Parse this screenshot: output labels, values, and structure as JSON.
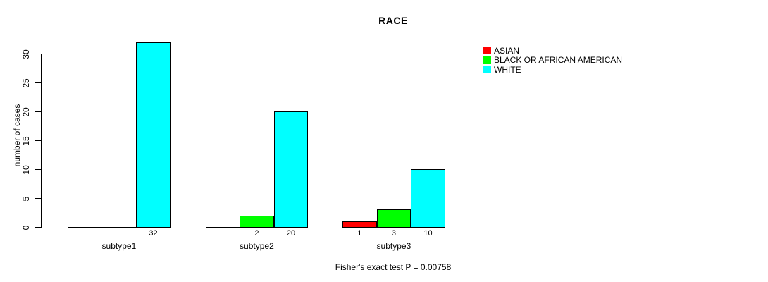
{
  "title": "RACE",
  "ylabel": "number of cases",
  "footer": "Fisher's exact test P = 0.00758",
  "legend": {
    "items": [
      {
        "label": "ASIAN",
        "color": "#FF0000"
      },
      {
        "label": "BLACK OR AFRICAN AMERICAN",
        "color": "#00FF00"
      },
      {
        "label": "WHITE",
        "color": "#00FFFF"
      }
    ]
  },
  "chart_data": {
    "type": "bar",
    "title": "RACE",
    "ylabel": "number of cases",
    "xlabel": "",
    "categories": [
      "subtype1",
      "subtype2",
      "subtype3"
    ],
    "series": [
      {
        "name": "ASIAN",
        "color": "#FF0000",
        "values": [
          0,
          0,
          1
        ]
      },
      {
        "name": "BLACK OR AFRICAN AMERICAN",
        "color": "#00FF00",
        "values": [
          0,
          2,
          3
        ]
      },
      {
        "name": "WHITE",
        "color": "#00FFFF",
        "values": [
          32,
          20,
          10
        ]
      }
    ],
    "yticks": [
      0,
      5,
      10,
      15,
      20,
      25,
      30
    ],
    "ylim": [
      0,
      32
    ],
    "grid": false,
    "legend_position": "top-right",
    "bar_value_labels": "shown under each non-zero bar",
    "annotation": "Fisher's exact test P = 0.00758"
  }
}
